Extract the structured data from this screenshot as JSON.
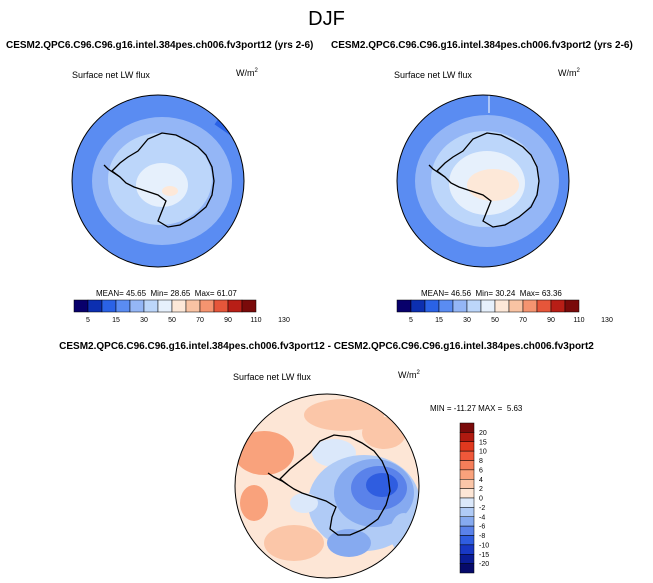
{
  "season": "DJF",
  "panels": [
    {
      "case": "CESM2.QPC6.C96.C96.g16.intel.384pes.ch006.fv3port12 (yrs 2-6)",
      "variable": "Surface net LW flux",
      "units_base": "W/m",
      "units_exp": "2",
      "stats": {
        "mean": "45.65",
        "min": "28.65",
        "max": "61.07"
      },
      "stats_labels": {
        "mean": "MEAN=",
        "min": "Min=",
        "max": "Max="
      }
    },
    {
      "case": "CESM2.QPC6.C96.C96.g16.intel.384pes.ch006.fv3port2 (yrs 2-6)",
      "variable": "Surface net LW flux",
      "units_base": "W/m",
      "units_exp": "2",
      "stats": {
        "mean": "46.56",
        "min": "30.24",
        "max": "63.36"
      },
      "stats_labels": {
        "mean": "MEAN=",
        "min": "Min=",
        "max": "Max="
      }
    }
  ],
  "colorbar_top": {
    "tick_labels": [
      "5",
      "15",
      "30",
      "50",
      "70",
      "90",
      "110",
      "130"
    ],
    "colors": [
      "#08006b",
      "#0c2fb0",
      "#2a62e6",
      "#5a8cf2",
      "#94b6f6",
      "#bcd6fa",
      "#e6f0fc",
      "#fde8d8",
      "#f9c3a3",
      "#f59470",
      "#e6563a",
      "#b81e16",
      "#7a0a0a"
    ]
  },
  "diff_panel": {
    "title": "CESM2.QPC6.C96.C96.g16.intel.384pes.ch006.fv3port12 - CESM2.QPC6.C96.C96.g16.intel.384pes.ch006.fv3port2",
    "variable": "Surface net LW flux",
    "units_base": "W/m",
    "units_exp": "2",
    "min_label": "MIN =",
    "min": "-11.27",
    "max_label": "MAX =",
    "max": "5.63"
  },
  "colorbar_diff": {
    "tick_labels": [
      "20",
      "15",
      "10",
      "8",
      "6",
      "4",
      "2",
      "0",
      "-2",
      "-4",
      "-6",
      "-8",
      "-10",
      "-15",
      "-20"
    ],
    "colors": [
      "#7a0a0a",
      "#b01a10",
      "#e0381e",
      "#f0583a",
      "#f57e5a",
      "#f9a27c",
      "#fbc6a8",
      "#fde6d6",
      "#dbe8fa",
      "#b0cbf6",
      "#86aaf0",
      "#5a82ea",
      "#2f5de0",
      "#1838c4",
      "#0a1c96",
      "#060a6a"
    ]
  }
}
